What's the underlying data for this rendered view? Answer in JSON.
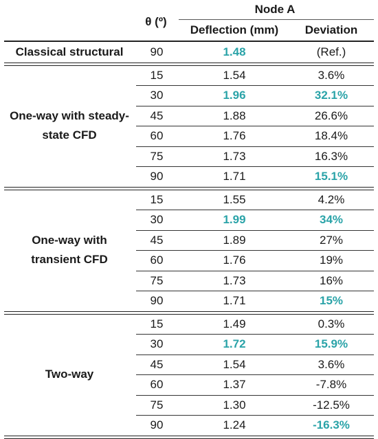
{
  "header": {
    "theta_label": "θ (º)",
    "node_label": "Node A",
    "col_deflection": "Deflection (mm)",
    "col_deviation": "Deviation"
  },
  "groups": [
    {
      "method": "Classical structural",
      "rows": [
        {
          "theta": "90",
          "deflection": "1.48",
          "deviation": "(Ref.)",
          "hl_deflection": true,
          "hl_deviation": false
        }
      ]
    },
    {
      "method": "One-way with steady-state CFD",
      "rows": [
        {
          "theta": "15",
          "deflection": "1.54",
          "deviation": "3.6%",
          "hl_deflection": false,
          "hl_deviation": false
        },
        {
          "theta": "30",
          "deflection": "1.96",
          "deviation": "32.1%",
          "hl_deflection": true,
          "hl_deviation": true
        },
        {
          "theta": "45",
          "deflection": "1.88",
          "deviation": "26.6%",
          "hl_deflection": false,
          "hl_deviation": false
        },
        {
          "theta": "60",
          "deflection": "1.76",
          "deviation": "18.4%",
          "hl_deflection": false,
          "hl_deviation": false
        },
        {
          "theta": "75",
          "deflection": "1.73",
          "deviation": "16.3%",
          "hl_deflection": false,
          "hl_deviation": false
        },
        {
          "theta": "90",
          "deflection": "1.71",
          "deviation": "15.1%",
          "hl_deflection": false,
          "hl_deviation": true
        }
      ]
    },
    {
      "method": "One-way with transient CFD",
      "rows": [
        {
          "theta": "15",
          "deflection": "1.55",
          "deviation": "4.2%",
          "hl_deflection": false,
          "hl_deviation": false
        },
        {
          "theta": "30",
          "deflection": "1.99",
          "deviation": "34%",
          "hl_deflection": true,
          "hl_deviation": true
        },
        {
          "theta": "45",
          "deflection": "1.89",
          "deviation": "27%",
          "hl_deflection": false,
          "hl_deviation": false
        },
        {
          "theta": "60",
          "deflection": "1.76",
          "deviation": "19%",
          "hl_deflection": false,
          "hl_deviation": false
        },
        {
          "theta": "75",
          "deflection": "1.73",
          "deviation": "16%",
          "hl_deflection": false,
          "hl_deviation": false
        },
        {
          "theta": "90",
          "deflection": "1.71",
          "deviation": "15%",
          "hl_deflection": false,
          "hl_deviation": true
        }
      ]
    },
    {
      "method": "Two-way",
      "rows": [
        {
          "theta": "15",
          "deflection": "1.49",
          "deviation": "0.3%",
          "hl_deflection": false,
          "hl_deviation": false
        },
        {
          "theta": "30",
          "deflection": "1.72",
          "deviation": "15.9%",
          "hl_deflection": true,
          "hl_deviation": true
        },
        {
          "theta": "45",
          "deflection": "1.54",
          "deviation": "3.6%",
          "hl_deflection": false,
          "hl_deviation": false
        },
        {
          "theta": "60",
          "deflection": "1.37",
          "deviation": "-7.8%",
          "hl_deflection": false,
          "hl_deviation": false
        },
        {
          "theta": "75",
          "deflection": "1.30",
          "deviation": "-12.5%",
          "hl_deflection": false,
          "hl_deviation": false
        },
        {
          "theta": "90",
          "deflection": "1.24",
          "deviation": "-16.3%",
          "hl_deflection": false,
          "hl_deviation": true
        }
      ]
    }
  ],
  "colors": {
    "highlight": "#2aa3a8",
    "text": "#1a1a1a"
  }
}
